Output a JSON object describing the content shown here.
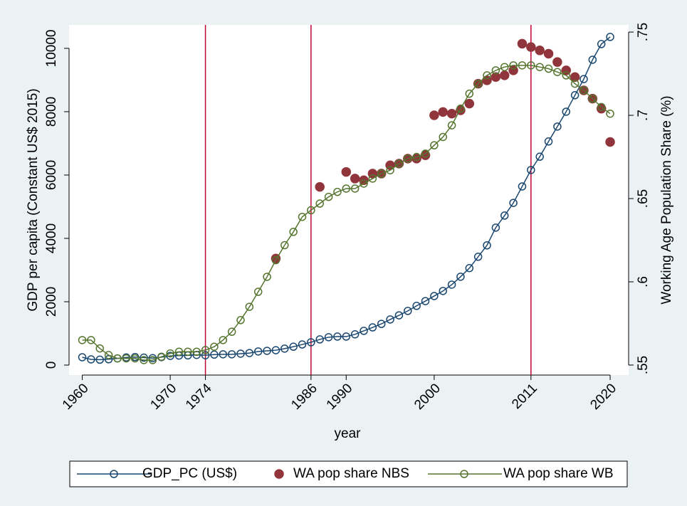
{
  "chart_data": {
    "type": "line",
    "x_label": "year",
    "y_label": "GDP per capita (Constant US$ 2015)",
    "y2_label": "Working Age Population Share (%)",
    "x": [
      1960,
      1961,
      1962,
      1963,
      1964,
      1965,
      1966,
      1967,
      1968,
      1969,
      1970,
      1971,
      1972,
      1973,
      1974,
      1975,
      1976,
      1977,
      1978,
      1979,
      1980,
      1981,
      1982,
      1983,
      1984,
      1985,
      1986,
      1987,
      1988,
      1989,
      1990,
      1991,
      1992,
      1993,
      1994,
      1995,
      1996,
      1997,
      1998,
      1999,
      2000,
      2001,
      2002,
      2003,
      2004,
      2005,
      2006,
      2007,
      2008,
      2009,
      2010,
      2011,
      2012,
      2013,
      2014,
      2015,
      2016,
      2017,
      2018,
      2019,
      2020
    ],
    "series": [
      {
        "name": "GDP_PC (US$)",
        "color": "#1a476f",
        "marker": "hollow",
        "line": true,
        "axis": "y",
        "values": [
          247,
          180,
          170,
          185,
          210,
          240,
          255,
          235,
          220,
          250,
          290,
          300,
          305,
          320,
          310,
          330,
          340,
          340,
          360,
          380,
          430,
          450,
          470,
          520,
          580,
          650,
          720,
          810,
          880,
          900,
          900,
          970,
          1080,
          1190,
          1300,
          1440,
          1570,
          1710,
          1870,
          2020,
          2180,
          2340,
          2540,
          2790,
          3060,
          3420,
          3780,
          4340,
          4720,
          5120,
          5640,
          6160,
          6580,
          7060,
          7530,
          8000,
          8520,
          9030,
          9640,
          10135,
          10360
        ]
      },
      {
        "name": "WA pop share NBS",
        "color": "#90353b",
        "marker": "filled",
        "line": false,
        "axis": "y2",
        "values": [
          null,
          null,
          null,
          null,
          null,
          null,
          null,
          null,
          null,
          null,
          null,
          null,
          null,
          null,
          null,
          null,
          null,
          null,
          null,
          null,
          null,
          null,
          0.614,
          null,
          null,
          null,
          null,
          0.657,
          null,
          null,
          0.666,
          0.662,
          0.661,
          0.665,
          0.665,
          0.67,
          0.671,
          0.674,
          0.674,
          0.676,
          0.7,
          0.702,
          0.701,
          0.703,
          0.707,
          0.719,
          0.721,
          0.723,
          0.724,
          0.727,
          0.743,
          0.741,
          0.739,
          0.737,
          0.732,
          0.727,
          0.723,
          0.715,
          0.71,
          0.704,
          0.684
        ]
      },
      {
        "name": "WA pop share WB",
        "color": "#55752f",
        "marker": "hollow",
        "line": true,
        "axis": "y2",
        "values": [
          0.565,
          0.565,
          0.56,
          0.556,
          0.554,
          0.554,
          0.554,
          0.553,
          0.553,
          0.555,
          0.557,
          0.558,
          0.558,
          0.558,
          0.559,
          0.561,
          0.565,
          0.57,
          0.577,
          0.585,
          0.594,
          0.603,
          0.613,
          0.622,
          0.63,
          0.639,
          0.643,
          0.647,
          0.651,
          0.654,
          0.656,
          0.656,
          0.659,
          0.662,
          0.665,
          0.667,
          0.671,
          0.674,
          0.675,
          0.677,
          0.682,
          0.687,
          0.694,
          0.704,
          0.713,
          0.719,
          0.724,
          0.727,
          0.729,
          0.73,
          0.73,
          0.73,
          0.729,
          0.728,
          0.726,
          0.724,
          0.719,
          0.715,
          0.71,
          0.705,
          0.701
        ]
      }
    ],
    "xlim": [
      1958.5,
      2022.1
    ],
    "xticks": [
      1960,
      1970,
      1974,
      1986,
      1990,
      2000,
      2011,
      2020
    ],
    "xlines": [
      1974,
      1986,
      2011
    ],
    "xline_color": "#c10534",
    "ylim": [
      -315,
      10740
    ],
    "yticks": [
      0,
      2000,
      4000,
      6000,
      8000,
      10000
    ],
    "y2lim": [
      0.544,
      0.7543
    ],
    "y2ticks": [
      {
        "value": 0.55,
        "label": ".55"
      },
      {
        "value": 0.6,
        "label": ".6"
      },
      {
        "value": 0.65,
        "label": ".65"
      },
      {
        "value": 0.7,
        "label": ".7"
      },
      {
        "value": 0.75,
        "label": ".75"
      }
    ],
    "legend": "bottom"
  }
}
